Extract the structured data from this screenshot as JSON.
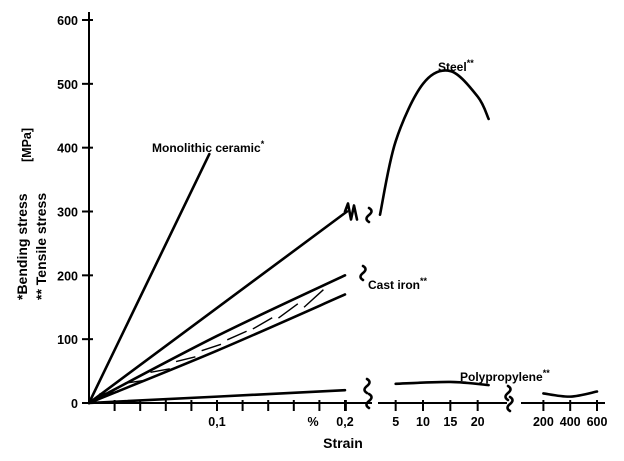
{
  "chart_data": {
    "type": "line",
    "xlabel": "Strain",
    "ylabel_lines": [
      "*Bending stress",
      "** Tensile stress"
    ],
    "ylabel_unit": "[MPa]",
    "ylim": [
      0,
      600
    ],
    "y_ticks": [
      "0",
      "100",
      "200",
      "300",
      "400",
      "500",
      "600"
    ],
    "x_tick_labels": [
      {
        "text": "0,1",
        "x": 0.1
      },
      {
        "text": "%",
        "x": 0.175
      },
      {
        "text": "0,2",
        "x": 0.2
      },
      {
        "text": "5",
        "x": 5
      },
      {
        "text": "10",
        "x": 10
      },
      {
        "text": "15",
        "x": 15
      },
      {
        "text": "20",
        "x": 20
      },
      {
        "text": "200",
        "x": 200
      },
      {
        "text": "400",
        "x": 400
      },
      {
        "text": "600",
        "x": 600
      }
    ],
    "series": [
      {
        "name": "Monolithic ceramic",
        "mark": "*",
        "points": [
          [
            0,
            0
          ],
          [
            0.094,
            390
          ]
        ]
      },
      {
        "name": "Steel",
        "mark": "**",
        "points": [
          [
            0,
            0
          ],
          [
            0.2,
            300
          ],
          [
            1,
            295
          ],
          [
            5,
            410
          ],
          [
            10,
            500
          ],
          [
            15,
            520
          ],
          [
            20,
            480
          ],
          [
            22,
            445
          ]
        ]
      },
      {
        "name": "Cast iron",
        "mark": "**",
        "points_upper": [
          [
            0,
            0
          ],
          [
            0.1,
            105
          ],
          [
            0.2,
            200
          ]
        ],
        "points_lower": [
          [
            0,
            0
          ],
          [
            0.1,
            82
          ],
          [
            0.2,
            170
          ]
        ]
      },
      {
        "name": "Polypropylene",
        "mark": "**",
        "points": [
          [
            0,
            0
          ],
          [
            0.2,
            20
          ],
          [
            5,
            30
          ],
          [
            15,
            33
          ],
          [
            22,
            28
          ],
          [
            200,
            15
          ],
          [
            400,
            10
          ],
          [
            600,
            18
          ]
        ]
      }
    ]
  }
}
